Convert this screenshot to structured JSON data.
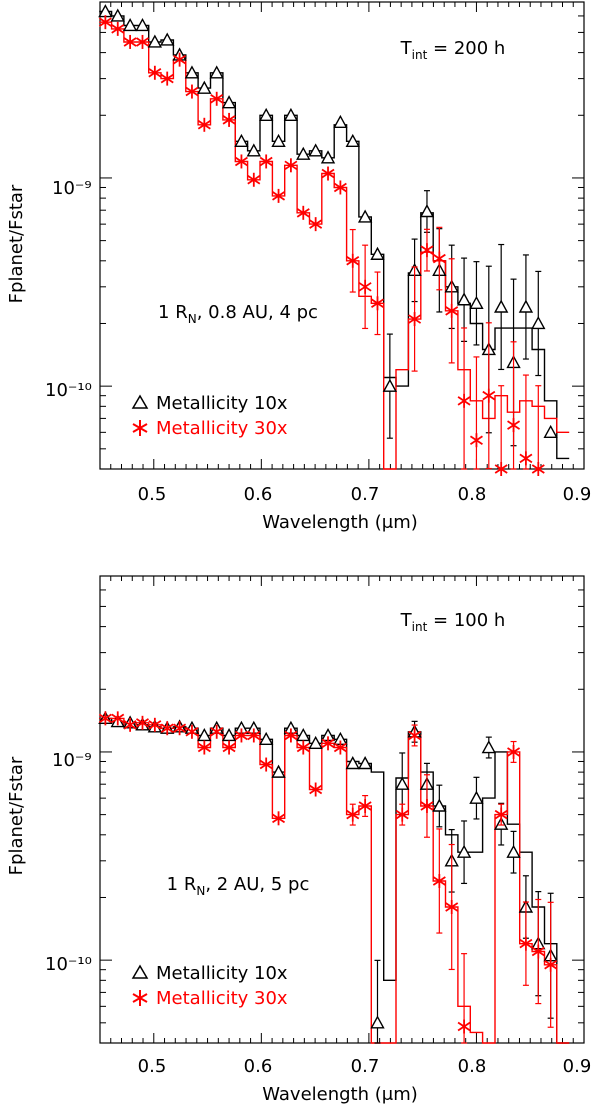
{
  "chart_data": [
    {
      "type": "line",
      "title": "",
      "xlabel": "Wavelength (μm)",
      "ylabel": "Fplanet/Fstar",
      "xlim": [
        0.45,
        0.9
      ],
      "ylim": [
        4e-11,
        7e-09
      ],
      "yscale": "log",
      "x_ticks": [
        "0.5",
        "0.6",
        "0.7",
        "0.8",
        "0.9"
      ],
      "y_ticks": [
        "10⁻⁹",
        "10⁻¹⁰"
      ],
      "annotation_tint": "T_int = 200 h",
      "annotation_params": "1 R_N, 0.8 AU, 4 pc",
      "legend": [
        "Metallicity 10x",
        "Metallicity 30x"
      ],
      "x": [
        0.455,
        0.4665,
        0.478,
        0.4895,
        0.501,
        0.5125,
        0.524,
        0.5355,
        0.547,
        0.5585,
        0.57,
        0.5815,
        0.593,
        0.6045,
        0.616,
        0.6275,
        0.639,
        0.6505,
        0.662,
        0.6735,
        0.685,
        0.6965,
        0.708,
        0.7195,
        0.731,
        0.7425,
        0.754,
        0.7655,
        0.777,
        0.7885,
        0.8,
        0.8115,
        0.823,
        0.8345,
        0.846,
        0.8575,
        0.869,
        0.8805
      ],
      "series": [
        {
          "name": "Metallicity 10x",
          "color": "#000000",
          "marker": "triangle",
          "model": [
            6.3e-09,
            6e-09,
            5.4e-09,
            5.4e-09,
            4.5e-09,
            4.6e-09,
            3.9e-09,
            3.2e-09,
            2.7e-09,
            3.2e-09,
            2.3e-09,
            1.5e-09,
            1.35e-09,
            2e-09,
            1.5e-09,
            2e-09,
            1.3e-09,
            1.35e-09,
            1.25e-09,
            1.8e-09,
            1.5e-09,
            6.5e-10,
            4.3e-10,
            1.1e-10,
            1e-10,
            3.5e-10,
            6.8e-10,
            4e-10,
            3e-10,
            2.5e-10,
            2e-10,
            1.5e-10,
            1.9e-10,
            1.9e-10,
            1.9e-10,
            1.5e-10,
            8.5e-11,
            4.5e-11
          ],
          "measured": [
            6.3e-09,
            6e-09,
            5.4e-09,
            5.4e-09,
            4.5e-09,
            4.6e-09,
            3.9e-09,
            3.2e-09,
            2.7e-09,
            3.2e-09,
            2.3e-09,
            1.5e-09,
            1.35e-09,
            2e-09,
            1.5e-09,
            2e-09,
            1.3e-09,
            1.35e-09,
            1.25e-09,
            1.85e-09,
            1.5e-09,
            6.5e-10,
            4.3e-10,
            1e-10,
            null,
            3.6e-10,
            6.9e-10,
            3.6e-10,
            3e-10,
            2.6e-10,
            2.5e-10,
            1.5e-10,
            2.4e-10,
            1.3e-10,
            2.4e-10,
            2e-10,
            6e-11,
            null
          ],
          "errors": [
            0,
            0,
            0,
            0,
            0,
            0,
            0,
            0,
            0,
            0,
            0,
            0,
            0,
            0,
            0,
            0,
            0,
            0,
            0,
            0,
            0,
            0,
            0,
            0.25,
            0,
            0.15,
            0.1,
            0.2,
            0.2,
            0.2,
            0.2,
            0.4,
            0.3,
            0.4,
            0.25,
            0.25,
            0,
            0
          ]
        },
        {
          "name": "Metallicity 30x",
          "color": "#ff0000",
          "marker": "asterisk",
          "model": [
            5.6e-09,
            5.2e-09,
            4.5e-09,
            4.5e-09,
            3.2e-09,
            3e-09,
            3.7e-09,
            2.6e-09,
            1.8e-09,
            2.4e-09,
            1.9e-09,
            1.2e-09,
            9.8e-10,
            1.2e-09,
            8.2e-10,
            1.15e-09,
            6.8e-10,
            6e-10,
            1.05e-09,
            9e-10,
            4e-10,
            2.7e-10,
            2.5e-10,
            3e-11,
            1.2e-10,
            2.1e-10,
            4.4e-10,
            4e-10,
            2.3e-10,
            1.2e-10,
            8.5e-11,
            7e-11,
            9e-11,
            7.5e-11,
            8.5e-11,
            8e-11,
            7e-11,
            6e-11
          ],
          "measured": [
            5.6e-09,
            5.2e-09,
            4.5e-09,
            4.5e-09,
            3.2e-09,
            3e-09,
            3.7e-09,
            2.6e-09,
            1.8e-09,
            2.4e-09,
            1.9e-09,
            1.2e-09,
            9.8e-10,
            1.2e-09,
            8.2e-10,
            1.15e-09,
            6.8e-10,
            6e-10,
            1.05e-09,
            9e-10,
            4e-10,
            3e-10,
            2.5e-10,
            null,
            null,
            2.1e-10,
            4.5e-10,
            4.1e-10,
            2.3e-10,
            8.5e-11,
            5.5e-11,
            9e-11,
            4e-11,
            6.5e-11,
            4.5e-11,
            4e-11,
            null,
            null
          ],
          "errors": [
            0,
            0,
            0,
            0,
            0,
            0,
            0,
            0,
            0,
            0,
            0,
            0,
            0,
            0,
            0,
            0,
            0,
            0,
            0,
            0,
            0.15,
            0.2,
            0.15,
            0,
            0,
            0.25,
            0.1,
            0.15,
            0.25,
            0.35,
            0.4,
            0.35,
            0.4,
            0.4,
            0.4,
            0.4,
            0,
            0
          ]
        }
      ]
    },
    {
      "type": "line",
      "title": "",
      "xlabel": "Wavelength (μm)",
      "ylabel": "Fplanet/Fstar",
      "xlim": [
        0.45,
        0.9
      ],
      "ylim": [
        4e-11,
        7e-09
      ],
      "yscale": "log",
      "x_ticks": [
        "0.5",
        "0.6",
        "0.7",
        "0.8",
        "0.9"
      ],
      "y_ticks": [
        "10⁻⁹",
        "10⁻¹⁰"
      ],
      "annotation_tint": "T_int = 100 h",
      "annotation_params": "1 R_N, 2 AU, 5 pc",
      "legend": [
        "Metallicity 10x",
        "Metallicity 30x"
      ],
      "x": [
        0.455,
        0.4665,
        0.478,
        0.4895,
        0.501,
        0.5125,
        0.524,
        0.5355,
        0.547,
        0.5585,
        0.57,
        0.5815,
        0.593,
        0.6045,
        0.616,
        0.6275,
        0.639,
        0.6505,
        0.662,
        0.6735,
        0.685,
        0.6965,
        0.708,
        0.7195,
        0.731,
        0.7425,
        0.754,
        0.7655,
        0.777,
        0.7885,
        0.8,
        0.8115,
        0.823,
        0.8345,
        0.846,
        0.8575,
        0.869,
        0.8805
      ],
      "series": [
        {
          "name": "Metallicity 10x",
          "color": "#000000",
          "marker": "triangle",
          "model": [
            1.45e-09,
            1.4e-09,
            1.38e-09,
            1.35e-09,
            1.32e-09,
            1.3e-09,
            1.32e-09,
            1.3e-09,
            1.2e-09,
            1.3e-09,
            1.2e-09,
            1.3e-09,
            1.3e-09,
            1.15e-09,
            8e-10,
            1.3e-09,
            1.2e-09,
            1.1e-09,
            1.2e-09,
            1.15e-09,
            9e-10,
            8.8e-10,
            8e-10,
            8e-11,
            7.5e-10,
            1.25e-09,
            8e-10,
            5.5e-10,
            4e-10,
            3.3e-10,
            3.3e-10,
            6e-10,
            1e-09,
            4.5e-10,
            3.3e-10,
            1.8e-10,
            1.2e-10,
            4e-11
          ],
          "measured": [
            1.45e-09,
            1.4e-09,
            1.38e-09,
            1.35e-09,
            1.32e-09,
            1.3e-09,
            1.32e-09,
            1.3e-09,
            1.2e-09,
            1.3e-09,
            1.2e-09,
            1.3e-09,
            1.3e-09,
            1.15e-09,
            8e-10,
            1.3e-09,
            1.2e-09,
            1.1e-09,
            1.2e-09,
            1.15e-09,
            8.8e-10,
            8.8e-10,
            5e-11,
            null,
            7e-10,
            1.25e-09,
            7e-10,
            5.5e-10,
            3e-10,
            3.3e-10,
            6e-10,
            1.05e-09,
            4.5e-10,
            3.3e-10,
            1.8e-10,
            1.2e-10,
            1.05e-10,
            null
          ],
          "errors": [
            0,
            0,
            0,
            0,
            0,
            0,
            0,
            0,
            0,
            0,
            0,
            0,
            0,
            0,
            0,
            0,
            0,
            0,
            0,
            0,
            0,
            0,
            0.3,
            0,
            0.15,
            0.05,
            0.1,
            0.1,
            0.15,
            0.15,
            0.1,
            0.05,
            0.1,
            0.1,
            0.15,
            0.25,
            0.3,
            0
          ]
        },
        {
          "name": "Metallicity 30x",
          "color": "#ff0000",
          "marker": "asterisk",
          "model": [
            1.45e-09,
            1.45e-09,
            1.35e-09,
            1.38e-09,
            1.35e-09,
            1.3e-09,
            1.3e-09,
            1.25e-09,
            1.05e-09,
            1.25e-09,
            1.05e-09,
            1.2e-09,
            1.2e-09,
            8.7e-10,
            4.8e-10,
            1.2e-09,
            1.05e-09,
            6.6e-10,
            1.1e-09,
            1.05e-09,
            5e-10,
            5.5e-10,
            1.5e-11,
            1.5e-11,
            5e-10,
            1.2e-09,
            5.5e-10,
            2.4e-10,
            1.8e-10,
            6e-11,
            4.5e-11,
            1e-11,
            5e-10,
            1e-09,
            1.2e-10,
            1.1e-10,
            9.5e-11,
            3e-11
          ],
          "measured": [
            1.45e-09,
            1.45e-09,
            1.35e-09,
            1.38e-09,
            1.35e-09,
            1.3e-09,
            1.3e-09,
            1.25e-09,
            1.05e-09,
            1.25e-09,
            1.05e-09,
            1.2e-09,
            1.2e-09,
            8.7e-10,
            4.8e-10,
            1.2e-09,
            1.05e-09,
            6.6e-10,
            1.1e-09,
            1.05e-09,
            5e-10,
            5.5e-10,
            null,
            null,
            5e-10,
            1.2e-09,
            5.5e-10,
            2.4e-10,
            1.8e-10,
            4.8e-11,
            null,
            null,
            5e-10,
            1e-09,
            1.2e-10,
            1.1e-10,
            9.5e-11,
            null
          ],
          "errors": [
            0,
            0,
            0,
            0,
            0,
            0,
            0,
            0,
            0,
            0,
            0,
            0,
            0,
            0,
            0,
            0,
            0,
            0,
            0,
            0,
            0.05,
            0.05,
            0,
            0,
            0.05,
            0.05,
            0.15,
            0.25,
            0.3,
            0.35,
            0,
            0,
            0.05,
            0.05,
            0.2,
            0.25,
            0.3,
            0
          ]
        }
      ]
    }
  ]
}
